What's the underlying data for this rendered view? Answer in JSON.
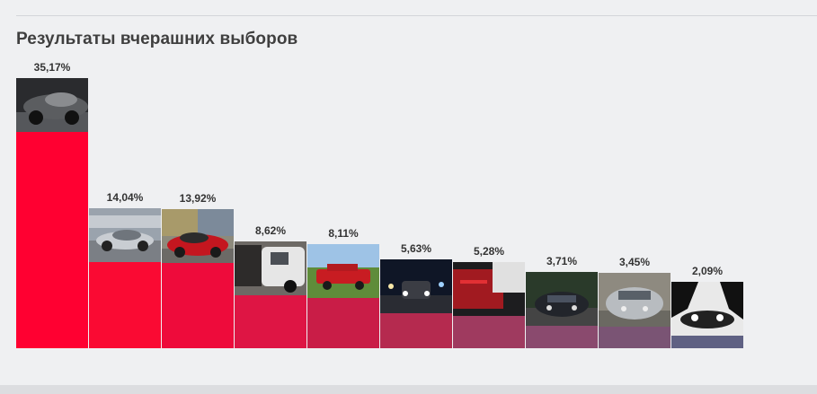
{
  "page": {
    "title": "Результаты вчерашних выборов"
  },
  "chart_data": {
    "type": "bar",
    "title": "Результаты вчерашних выборов",
    "xlabel": "",
    "ylabel": "",
    "ylim": [
      0,
      35.17
    ],
    "grid": false,
    "values": [
      35.17,
      14.04,
      13.92,
      8.62,
      8.11,
      5.63,
      5.28,
      3.71,
      3.45,
      2.09
    ],
    "labels": [
      "35,17%",
      "14,04%",
      "13,92%",
      "8,62%",
      "8,11%",
      "5,63%",
      "5,28%",
      "3,71%",
      "3,45%",
      "2,09%"
    ],
    "colors": [
      "#ff0031",
      "#fa0a33",
      "#ee0b3b",
      "#de1544",
      "#c91d47",
      "#b52a4f",
      "#9f3a5f",
      "#8a4a6e",
      "#7a5474",
      "#5f6183"
    ],
    "thumbnails": [
      "dark-sports-car-photo",
      "silver-coupe-parking-lot-photo",
      "red-hatchback-graffiti-photo",
      "white-van-open-door-photo",
      "red-classic-sedan-grass-photo",
      "suv-night-lights-photo",
      "red-car-interior-photo",
      "dark-sedan-parked-photo",
      "silver-minivan-photo",
      "car-headlights-monochrome-photo"
    ]
  }
}
